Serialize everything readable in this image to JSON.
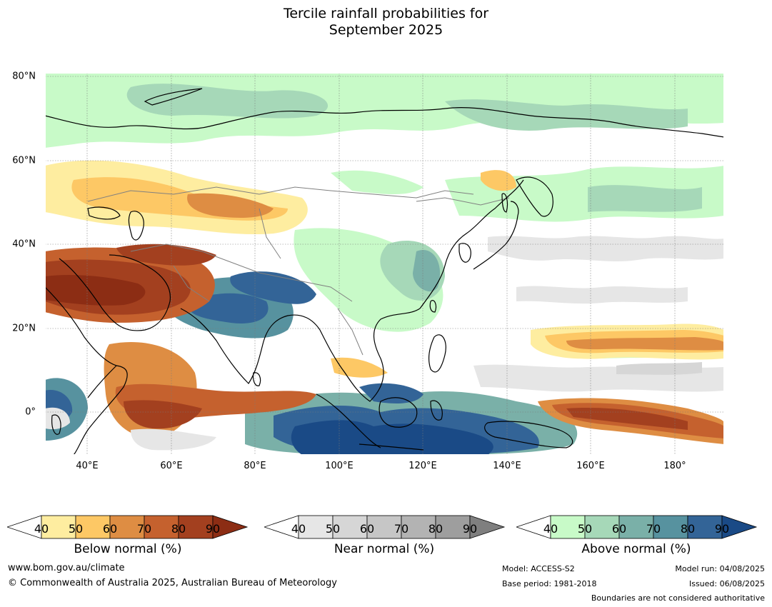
{
  "title": {
    "line1": "Tercile rainfall probabilities for",
    "line2": "September 2025"
  },
  "map": {
    "lat_ticks": [
      "80°N",
      "60°N",
      "40°N",
      "20°N",
      "0°"
    ],
    "lon_ticks": [
      "40°E",
      "60°E",
      "80°E",
      "100°E",
      "120°E",
      "140°E",
      "160°E",
      "180°"
    ]
  },
  "legend": {
    "below": {
      "label": "Below normal (%)",
      "ticks": [
        "40",
        "50",
        "60",
        "70",
        "80",
        "90"
      ],
      "colors": [
        "#ffffff",
        "#feeda0",
        "#fdc865",
        "#de8d43",
        "#c5612e",
        "#a3401f",
        "#8c2d14"
      ]
    },
    "near": {
      "label": "Near normal (%)",
      "ticks": [
        "40",
        "50",
        "60",
        "70",
        "80",
        "90"
      ],
      "colors": [
        "#ffffff",
        "#e6e6e6",
        "#d6d6d6",
        "#c6c6c6",
        "#b3b3b3",
        "#9e9e9e",
        "#7f7f7f"
      ]
    },
    "above": {
      "label": "Above normal (%)",
      "ticks": [
        "40",
        "50",
        "60",
        "70",
        "80",
        "90"
      ],
      "colors": [
        "#ffffff",
        "#c8fac8",
        "#a6d8b8",
        "#7ab0a8",
        "#57929f",
        "#336497",
        "#1a4a86"
      ]
    }
  },
  "footer": {
    "website": "www.bom.gov.au/climate",
    "copyright": "© Commonwealth of Australia 2025, Australian Bureau of Meteorology",
    "model": "Model: ACCESS-S2",
    "base_period": "Base period: 1981-2018",
    "model_run": "Model run: 04/08/2025",
    "issued": "Issued: 06/08/2025",
    "boundaries": "Boundaries are not considered authoritative"
  }
}
